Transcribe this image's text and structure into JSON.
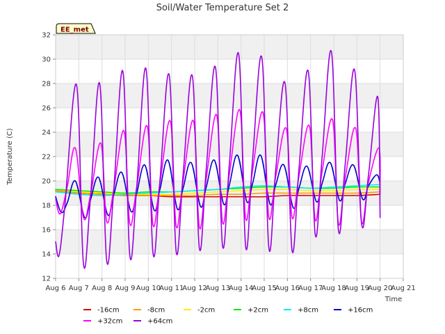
{
  "chart_data": {
    "type": "line",
    "title": "Soil/Water Temperature Set 2",
    "xlabel": "Time",
    "ylabel": "Temperature (C)",
    "site_label": "EE_met",
    "xlim": [
      6,
      21
    ],
    "ylim": [
      12,
      32
    ],
    "x_ticks": [
      6,
      7,
      8,
      9,
      10,
      11,
      12,
      13,
      14,
      15,
      16,
      17,
      18,
      19,
      20,
      21
    ],
    "x_tick_labels": [
      "Aug 6",
      "Aug 7",
      "Aug 8",
      "Aug 9",
      "Aug 10",
      "Aug 11",
      "Aug 12",
      "Aug 13",
      "Aug 14",
      "Aug 15",
      "Aug 16",
      "Aug 17",
      "Aug 18",
      "Aug 19",
      "Aug 20",
      "Aug 21"
    ],
    "y_ticks": [
      12,
      14,
      16,
      18,
      20,
      22,
      24,
      26,
      28,
      30,
      32
    ],
    "y_tick_labels": [
      "12",
      "14",
      "16",
      "18",
      "20",
      "22",
      "24",
      "26",
      "28",
      "30",
      "32"
    ],
    "grid": true,
    "legend_position": "bottom",
    "series": [
      {
        "name": "-16cm",
        "color": "#dd0000",
        "x": [
          6.0,
          7.0,
          8.0,
          9.0,
          10.0,
          11.0,
          12.0,
          13.0,
          14.0,
          15.0,
          16.0,
          17.0,
          18.0,
          19.0,
          20.0
        ],
        "y": [
          19.2,
          19.0,
          18.9,
          18.8,
          18.8,
          18.7,
          18.7,
          18.7,
          18.7,
          18.7,
          18.8,
          18.8,
          18.8,
          18.8,
          18.9
        ]
      },
      {
        "name": "-8cm",
        "color": "#ff9900",
        "x": [
          6.0,
          7.0,
          8.0,
          9.0,
          10.0,
          11.0,
          12.0,
          13.0,
          14.0,
          15.0,
          16.0,
          17.0,
          18.0,
          19.0,
          20.0
        ],
        "y": [
          19.2,
          19.0,
          18.9,
          18.8,
          18.8,
          18.8,
          18.8,
          18.9,
          18.9,
          19.0,
          19.0,
          19.0,
          19.0,
          19.0,
          19.1
        ]
      },
      {
        "name": "-2cm",
        "color": "#ffee00",
        "x": [
          6.0,
          7.0,
          8.0,
          9.0,
          10.0,
          11.0,
          12.0,
          13.0,
          14.0,
          15.0,
          16.0,
          17.0,
          18.0,
          19.0,
          20.0
        ],
        "y": [
          19.3,
          19.1,
          19.0,
          18.9,
          18.9,
          18.9,
          19.0,
          19.1,
          19.2,
          19.3,
          19.3,
          19.2,
          19.2,
          19.3,
          19.3
        ]
      },
      {
        "name": "+2cm",
        "color": "#00ee00",
        "x": [
          6.0,
          7.0,
          8.0,
          9.0,
          10.0,
          11.0,
          12.0,
          13.0,
          14.0,
          15.0,
          16.0,
          17.0,
          18.0,
          19.0,
          20.0
        ],
        "y": [
          19.3,
          19.2,
          19.1,
          19.0,
          19.1,
          19.1,
          19.2,
          19.3,
          19.4,
          19.5,
          19.5,
          19.4,
          19.4,
          19.5,
          19.5
        ]
      },
      {
        "name": "+8cm",
        "color": "#00eeee",
        "x": [
          6.0,
          7.0,
          8.0,
          9.0,
          10.0,
          11.0,
          12.0,
          13.0,
          14.0,
          15.0,
          16.0,
          17.0,
          18.0,
          19.0,
          20.0
        ],
        "y": [
          19.1,
          18.9,
          18.8,
          18.9,
          19.0,
          19.1,
          19.2,
          19.3,
          19.5,
          19.6,
          19.5,
          19.4,
          19.5,
          19.6,
          19.7
        ]
      },
      {
        "name": "+16cm",
        "color": "#0000cc",
        "x": [
          6.0,
          6.25,
          6.5,
          6.85,
          7.25,
          7.5,
          7.85,
          8.25,
          8.5,
          8.85,
          9.25,
          9.5,
          9.85,
          10.25,
          10.5,
          10.85,
          11.25,
          11.5,
          11.85,
          12.25,
          12.5,
          12.85,
          13.25,
          13.5,
          13.85,
          14.25,
          14.5,
          14.85,
          15.25,
          15.5,
          15.85,
          16.25,
          16.5,
          16.85,
          17.25,
          17.5,
          17.85,
          18.25,
          18.5,
          18.85,
          19.25,
          19.5,
          19.85,
          20.0
        ],
        "y": [
          18.7,
          17.4,
          18.2,
          20.0,
          17.0,
          18.4,
          20.3,
          17.2,
          18.8,
          20.7,
          17.5,
          19.0,
          21.3,
          17.6,
          19.3,
          21.7,
          17.7,
          19.4,
          21.5,
          17.9,
          19.5,
          21.7,
          18.1,
          19.7,
          22.1,
          18.3,
          19.8,
          22.1,
          18.1,
          19.7,
          21.3,
          17.8,
          19.4,
          21.2,
          18.3,
          19.8,
          21.5,
          18.4,
          19.8,
          21.3,
          18.5,
          19.6,
          20.5,
          19.8
        ]
      },
      {
        "name": "+32cm",
        "color": "#ff00ff",
        "x": [
          6.0,
          6.2,
          6.5,
          6.85,
          7.2,
          7.5,
          7.95,
          8.2,
          8.5,
          8.95,
          9.2,
          9.5,
          9.95,
          10.2,
          10.5,
          10.95,
          11.2,
          11.5,
          11.95,
          12.2,
          12.5,
          12.95,
          13.2,
          13.5,
          13.95,
          14.2,
          14.5,
          14.95,
          15.2,
          15.5,
          15.95,
          16.2,
          16.5,
          16.95,
          17.2,
          17.5,
          17.95,
          18.2,
          18.5,
          18.95,
          19.2,
          19.5,
          19.95,
          20.0
        ],
        "y": [
          18.5,
          17.3,
          19.5,
          22.7,
          17.0,
          18.8,
          23.1,
          16.7,
          19.2,
          24.1,
          16.5,
          19.5,
          24.5,
          16.4,
          19.8,
          24.9,
          16.3,
          20.0,
          24.9,
          16.2,
          20.2,
          25.4,
          16.6,
          20.6,
          25.8,
          16.9,
          20.9,
          25.6,
          17.0,
          20.4,
          24.3,
          17.0,
          20.4,
          24.5,
          16.8,
          20.8,
          25.0,
          16.5,
          20.3,
          24.3,
          16.6,
          19.9,
          22.7,
          19.0
        ]
      },
      {
        "name": "+64cm",
        "color": "#9900dd",
        "x": [
          6.0,
          6.15,
          6.4,
          6.9,
          7.2,
          7.5,
          7.9,
          8.2,
          8.5,
          8.9,
          9.2,
          9.5,
          9.9,
          10.2,
          10.5,
          10.9,
          11.2,
          11.5,
          11.9,
          12.2,
          12.5,
          12.9,
          13.2,
          13.5,
          13.9,
          14.2,
          14.5,
          14.9,
          15.2,
          15.5,
          15.9,
          16.2,
          16.5,
          16.9,
          17.2,
          17.5,
          17.9,
          18.2,
          18.5,
          18.9,
          19.2,
          19.5,
          19.9,
          20.0
        ],
        "y": [
          15.0,
          13.9,
          18.0,
          27.9,
          13.2,
          18.5,
          28.0,
          13.5,
          19.0,
          29.0,
          13.9,
          19.5,
          29.2,
          14.1,
          20.0,
          28.7,
          14.2,
          20.5,
          28.6,
          14.5,
          21.0,
          29.3,
          14.7,
          21.5,
          30.4,
          14.6,
          21.8,
          30.1,
          14.5,
          21.0,
          28.0,
          14.3,
          21.0,
          29.0,
          15.6,
          22.0,
          30.6,
          16.0,
          21.5,
          29.1,
          16.5,
          20.5,
          26.9,
          17.0
        ]
      }
    ]
  }
}
